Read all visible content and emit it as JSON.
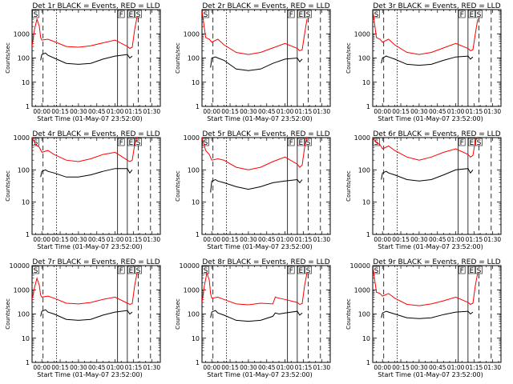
{
  "chart_data": [
    {
      "type": "line",
      "title": "Det 1r BLACK = Events, RED = LLD",
      "xlabel": "Start Time (01-May-07 23:52:00)",
      "ylabel": "Counts/sec",
      "y_scale": "log",
      "ylim": [
        1,
        10000
      ],
      "x_ticks": [
        "00:00",
        "00:15",
        "00:30",
        "00:45",
        "01:00",
        "01:15",
        "01:30"
      ],
      "y_ticks": [
        "1",
        "10",
        "100",
        "1000"
      ],
      "markers": [
        {
          "label": "S",
          "at": "23:53"
        },
        {
          "label": "F",
          "at": "01:03"
        },
        {
          "label": "E",
          "at": "01:11"
        },
        {
          "label": "S",
          "at": "01:17"
        }
      ],
      "series": [
        {
          "color": "#ff0000",
          "x": [
            "23:52",
            "23:54",
            "23:56",
            "23:58",
            "23:59",
            "00:00",
            "00:05",
            "00:10",
            "00:20",
            "00:30",
            "00:40",
            "00:50",
            "01:00",
            "01:10",
            "01:12",
            "01:14",
            "01:16",
            "01:18"
          ],
          "y": [
            300,
            1500,
            4000,
            2000,
            700,
            550,
            600,
            480,
            300,
            280,
            320,
            420,
            550,
            300,
            250,
            280,
            1500,
            5000
          ]
        },
        {
          "color": "#000000",
          "x": [
            "23:59",
            "00:00",
            "00:03",
            "00:05",
            "00:10",
            "00:20",
            "00:30",
            "00:40",
            "00:50",
            "01:00",
            "01:10",
            "01:12",
            "01:14"
          ],
          "y": [
            80,
            140,
            160,
            130,
            100,
            60,
            55,
            60,
            90,
            120,
            140,
            100,
            120
          ]
        }
      ]
    },
    {
      "type": "line",
      "title": "Det 2r BLACK = Events, RED = LLD",
      "xlabel": "Start Time (01-May-07 23:52:00)",
      "ylabel": "Counts/sec",
      "y_scale": "log",
      "ylim": [
        1,
        10000
      ],
      "x_ticks": [
        "00:00",
        "00:15",
        "00:30",
        "00:45",
        "01:00",
        "01:15",
        "01:30"
      ],
      "y_ticks": [
        "1",
        "10",
        "100",
        "1000"
      ],
      "markers": [
        {
          "label": "S",
          "at": "23:53"
        },
        {
          "label": "F",
          "at": "01:03"
        },
        {
          "label": "E",
          "at": "01:11"
        },
        {
          "label": "S",
          "at": "01:17"
        }
      ],
      "series": [
        {
          "color": "#ff0000",
          "x": [
            "23:52",
            "23:55",
            "23:58",
            "00:00",
            "00:05",
            "00:10",
            "00:20",
            "00:30",
            "00:40",
            "00:50",
            "01:00",
            "01:10",
            "01:12",
            "01:14",
            "01:16",
            "01:18"
          ],
          "y": [
            9000,
            700,
            600,
            450,
            600,
            350,
            170,
            140,
            170,
            260,
            400,
            250,
            200,
            220,
            1000,
            4000
          ]
        },
        {
          "color": "#000000",
          "x": [
            "23:59",
            "00:00",
            "00:03",
            "00:05",
            "00:10",
            "00:20",
            "00:30",
            "00:40",
            "00:50",
            "01:00",
            "01:10",
            "01:12",
            "01:14"
          ],
          "y": [
            40,
            100,
            110,
            100,
            80,
            35,
            30,
            35,
            60,
            90,
            100,
            70,
            90
          ]
        }
      ]
    },
    {
      "type": "line",
      "title": "Det 3r BLACK = Events, RED = LLD",
      "xlabel": "Start Time (01-May-07 23:52:00)",
      "ylabel": "Counts/sec",
      "y_scale": "log",
      "ylim": [
        1,
        10000
      ],
      "x_ticks": [
        "00:00",
        "00:15",
        "00:30",
        "00:45",
        "01:00",
        "01:15",
        "01:30"
      ],
      "y_ticks": [
        "1",
        "10",
        "100",
        "1000"
      ],
      "markers": [
        {
          "label": "S",
          "at": "23:53"
        },
        {
          "label": "F",
          "at": "01:03"
        },
        {
          "label": "E",
          "at": "01:11"
        },
        {
          "label": "S",
          "at": "01:17"
        }
      ],
      "series": [
        {
          "color": "#ff0000",
          "x": [
            "23:52",
            "23:55",
            "23:58",
            "00:00",
            "00:05",
            "00:10",
            "00:20",
            "00:30",
            "00:40",
            "00:50",
            "01:00",
            "01:10",
            "01:12",
            "01:14",
            "01:16",
            "01:18"
          ],
          "y": [
            10000,
            700,
            600,
            450,
            600,
            350,
            170,
            140,
            170,
            260,
            400,
            250,
            200,
            220,
            1000,
            4000
          ]
        },
        {
          "color": "#000000",
          "x": [
            "23:59",
            "00:00",
            "00:03",
            "00:05",
            "00:10",
            "00:20",
            "00:30",
            "00:40",
            "00:50",
            "01:00",
            "01:10",
            "01:12",
            "01:14"
          ],
          "y": [
            60,
            100,
            120,
            110,
            90,
            55,
            50,
            55,
            80,
            110,
            120,
            90,
            110
          ]
        }
      ]
    },
    {
      "type": "line",
      "title": "Det 4r BLACK = Events, RED = LLD",
      "xlabel": "Start Time (01-May-07 23:52:00)",
      "ylabel": "Counts/sec",
      "y_scale": "log",
      "ylim": [
        1,
        1000
      ],
      "x_ticks": [
        "00:00",
        "00:15",
        "00:30",
        "00:45",
        "01:00",
        "01:15",
        "01:30"
      ],
      "y_ticks": [
        "1",
        "10",
        "100",
        "1000"
      ],
      "markers": [
        {
          "label": "S",
          "at": "23:53"
        },
        {
          "label": "F",
          "at": "01:03"
        },
        {
          "label": "E",
          "at": "01:11"
        },
        {
          "label": "S",
          "at": "01:17"
        }
      ],
      "series": [
        {
          "color": "#ff0000",
          "x": [
            "23:52",
            "23:55",
            "23:58",
            "00:00",
            "00:05",
            "00:10",
            "00:20",
            "00:30",
            "00:40",
            "00:50",
            "01:00",
            "01:10",
            "01:12",
            "01:14",
            "01:16",
            "01:18"
          ],
          "y": [
            1000,
            600,
            500,
            350,
            400,
            300,
            200,
            180,
            220,
            300,
            350,
            200,
            180,
            200,
            600,
            1000
          ]
        },
        {
          "color": "#000000",
          "x": [
            "23:59",
            "00:00",
            "00:03",
            "00:05",
            "00:10",
            "00:20",
            "00:30",
            "00:40",
            "00:50",
            "01:00",
            "01:10",
            "01:12",
            "01:14"
          ],
          "y": [
            60,
            90,
            100,
            90,
            80,
            60,
            60,
            70,
            90,
            110,
            110,
            80,
            100
          ]
        }
      ]
    },
    {
      "type": "line",
      "title": "Det 5r BLACK = Events, RED = LLD",
      "xlabel": "Start Time (01-May-07 23:52:00)",
      "ylabel": "Counts/sec",
      "y_scale": "log",
      "ylim": [
        1,
        1000
      ],
      "x_ticks": [
        "00:00",
        "00:15",
        "00:30",
        "00:45",
        "01:00",
        "01:15",
        "01:30"
      ],
      "y_ticks": [
        "1",
        "10",
        "100",
        "1000"
      ],
      "markers": [
        {
          "label": "S",
          "at": "23:53"
        },
        {
          "label": "F",
          "at": "01:03"
        },
        {
          "label": "E",
          "at": "01:11"
        },
        {
          "label": "S",
          "at": "01:17"
        }
      ],
      "series": [
        {
          "color": "#ff0000",
          "x": [
            "23:52",
            "23:55",
            "23:58",
            "00:00",
            "00:05",
            "00:10",
            "00:20",
            "00:30",
            "00:40",
            "00:50",
            "01:00",
            "01:10",
            "01:12",
            "01:14",
            "01:16",
            "01:18"
          ],
          "y": [
            1000,
            400,
            300,
            200,
            220,
            200,
            120,
            100,
            120,
            180,
            250,
            150,
            120,
            140,
            500,
            1000
          ]
        },
        {
          "color": "#000000",
          "x": [
            "23:59",
            "00:00",
            "00:03",
            "00:05",
            "00:10",
            "00:20",
            "00:30",
            "00:40",
            "00:50",
            "01:00",
            "01:10",
            "01:12",
            "01:14"
          ],
          "y": [
            20,
            45,
            50,
            45,
            40,
            30,
            25,
            30,
            40,
            45,
            50,
            40,
            50
          ]
        }
      ]
    },
    {
      "type": "line",
      "title": "Det 6r BLACK = Events, RED = LLD",
      "xlabel": "Start Time (01-May-07 23:52:00)",
      "ylabel": "Counts/sec",
      "y_scale": "log",
      "ylim": [
        1,
        1000
      ],
      "x_ticks": [
        "00:00",
        "00:15",
        "00:30",
        "00:45",
        "01:00",
        "01:15",
        "01:30"
      ],
      "y_ticks": [
        "1",
        "10",
        "100",
        "1000"
      ],
      "markers": [
        {
          "label": "S",
          "at": "23:53"
        },
        {
          "label": "F",
          "at": "01:03"
        },
        {
          "label": "E",
          "at": "01:11"
        },
        {
          "label": "S",
          "at": "01:17"
        }
      ],
      "series": [
        {
          "color": "#ff0000",
          "x": [
            "23:52",
            "23:55",
            "23:58",
            "00:00",
            "00:05",
            "00:10",
            "00:20",
            "00:30",
            "00:40",
            "00:50",
            "01:00",
            "01:10",
            "01:12",
            "01:14",
            "01:16",
            "01:18"
          ],
          "y": [
            1000,
            700,
            600,
            450,
            550,
            400,
            250,
            200,
            250,
            350,
            450,
            300,
            250,
            280,
            800,
            1000
          ]
        },
        {
          "color": "#000000",
          "x": [
            "23:59",
            "00:00",
            "00:03",
            "00:05",
            "00:10",
            "00:20",
            "00:30",
            "00:40",
            "00:50",
            "01:00",
            "01:10",
            "01:12",
            "01:14"
          ],
          "y": [
            50,
            80,
            90,
            80,
            70,
            50,
            45,
            50,
            70,
            100,
            110,
            80,
            100
          ]
        }
      ]
    },
    {
      "type": "line",
      "title": "Det 7r BLACK = Events, RED = LLD",
      "xlabel": "Start Time (01-May-07 23:52:00)",
      "ylabel": "Counts/sec",
      "y_scale": "log",
      "ylim": [
        1,
        10000
      ],
      "x_ticks": [
        "00:00",
        "00:15",
        "00:30",
        "00:45",
        "01:00",
        "01:15",
        "01:30"
      ],
      "y_ticks": [
        "1",
        "10",
        "100",
        "1000",
        "10000"
      ],
      "markers": [
        {
          "label": "S",
          "at": "23:53"
        },
        {
          "label": "F",
          "at": "01:03"
        },
        {
          "label": "E",
          "at": "01:11"
        },
        {
          "label": "S",
          "at": "01:17"
        }
      ],
      "series": [
        {
          "color": "#ff0000",
          "x": [
            "23:52",
            "23:54",
            "23:56",
            "23:58",
            "23:59",
            "00:00",
            "00:05",
            "00:10",
            "00:20",
            "00:30",
            "00:40",
            "00:50",
            "01:00",
            "01:10",
            "01:12",
            "01:14",
            "01:16",
            "01:18"
          ],
          "y": [
            400,
            1200,
            3000,
            1500,
            600,
            500,
            550,
            450,
            280,
            260,
            300,
            400,
            500,
            280,
            250,
            270,
            1500,
            5000
          ]
        },
        {
          "color": "#000000",
          "x": [
            "23:59",
            "00:00",
            "00:03",
            "00:05",
            "00:10",
            "00:20",
            "00:30",
            "00:40",
            "00:50",
            "01:00",
            "01:10",
            "01:12",
            "01:14"
          ],
          "y": [
            80,
            130,
            150,
            120,
            100,
            60,
            55,
            60,
            90,
            120,
            140,
            100,
            120
          ]
        }
      ]
    },
    {
      "type": "line",
      "title": "Det 8r BLACK = Events, RED = LLD",
      "xlabel": "Start Time (01-May-07 23:52:00)",
      "ylabel": "Counts/sec",
      "y_scale": "log",
      "ylim": [
        1,
        10000
      ],
      "x_ticks": [
        "00:00",
        "00:15",
        "00:30",
        "00:45",
        "01:00",
        "01:15",
        "01:30"
      ],
      "y_ticks": [
        "1",
        "10",
        "100",
        "1000",
        "10000"
      ],
      "markers": [
        {
          "label": "S",
          "at": "23:53"
        },
        {
          "label": "F",
          "at": "01:03"
        },
        {
          "label": "E",
          "at": "01:11"
        },
        {
          "label": "S",
          "at": "01:17"
        }
      ],
      "series": [
        {
          "color": "#ff0000",
          "x": [
            "23:52",
            "23:54",
            "23:56",
            "23:58",
            "23:59",
            "00:00",
            "00:05",
            "00:10",
            "00:20",
            "00:30",
            "00:40",
            "00:50",
            "00:52",
            "00:55",
            "01:00",
            "01:10",
            "01:12",
            "01:14",
            "01:16",
            "01:18"
          ],
          "y": [
            300,
            1500,
            5000,
            2500,
            700,
            450,
            500,
            400,
            260,
            240,
            280,
            260,
            500,
            450,
            400,
            300,
            250,
            270,
            1500,
            5000
          ]
        },
        {
          "color": "#000000",
          "x": [
            "23:59",
            "00:00",
            "00:03",
            "00:05",
            "00:10",
            "00:20",
            "00:30",
            "00:40",
            "00:50",
            "00:52",
            "00:55",
            "01:00",
            "01:10",
            "01:12",
            "01:14"
          ],
          "y": [
            70,
            120,
            140,
            110,
            90,
            55,
            50,
            55,
            80,
            110,
            100,
            110,
            130,
            90,
            110
          ]
        }
      ]
    },
    {
      "type": "line",
      "title": "Det 9r BLACK = Events, RED = LLD",
      "xlabel": "Start Time (01-May-07 23:52:00)",
      "ylabel": "Counts/sec",
      "y_scale": "log",
      "ylim": [
        1,
        10000
      ],
      "x_ticks": [
        "00:00",
        "00:15",
        "00:30",
        "00:45",
        "01:00",
        "01:15",
        "01:30"
      ],
      "y_ticks": [
        "1",
        "10",
        "100",
        "1000",
        "10000"
      ],
      "markers": [
        {
          "label": "S",
          "at": "23:53"
        },
        {
          "label": "F",
          "at": "01:03"
        },
        {
          "label": "E",
          "at": "01:11"
        },
        {
          "label": "S",
          "at": "01:17"
        }
      ],
      "series": [
        {
          "color": "#ff0000",
          "x": [
            "23:52",
            "23:55",
            "23:58",
            "00:00",
            "00:05",
            "00:10",
            "00:20",
            "00:30",
            "00:40",
            "00:50",
            "01:00",
            "01:10",
            "01:12",
            "01:14",
            "01:16",
            "01:18"
          ],
          "y": [
            10000,
            800,
            700,
            550,
            700,
            450,
            250,
            220,
            260,
            350,
            500,
            300,
            250,
            280,
            1500,
            5000
          ]
        },
        {
          "color": "#000000",
          "x": [
            "23:59",
            "00:00",
            "00:03",
            "00:05",
            "00:10",
            "00:20",
            "00:30",
            "00:40",
            "00:50",
            "01:00",
            "01:10",
            "01:12",
            "01:14"
          ],
          "y": [
            70,
            110,
            130,
            120,
            100,
            70,
            65,
            70,
            95,
            120,
            130,
            100,
            120
          ]
        }
      ]
    }
  ]
}
